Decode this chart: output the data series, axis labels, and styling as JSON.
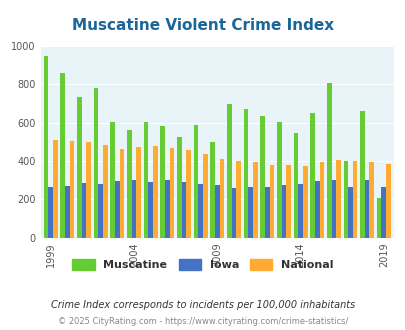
{
  "title": "Muscatine Violent Crime Index",
  "years": [
    1999,
    2000,
    2001,
    2002,
    2003,
    2004,
    2005,
    2006,
    2007,
    2008,
    2009,
    2010,
    2011,
    2012,
    2013,
    2014,
    2015,
    2016,
    2017,
    2018,
    2019
  ],
  "muscatine": [
    950,
    860,
    735,
    780,
    605,
    560,
    605,
    585,
    525,
    590,
    500,
    700,
    670,
    635,
    605,
    545,
    650,
    810,
    400,
    660,
    205
  ],
  "iowa": [
    265,
    270,
    285,
    280,
    295,
    300,
    290,
    300,
    290,
    280,
    275,
    260,
    265,
    265,
    275,
    280,
    295,
    300,
    265,
    300,
    265
  ],
  "national": [
    510,
    505,
    500,
    485,
    465,
    475,
    480,
    470,
    460,
    435,
    410,
    400,
    395,
    380,
    380,
    375,
    395,
    405,
    400,
    395,
    385
  ],
  "muscatine_color": "#66cc33",
  "iowa_color": "#4472c4",
  "national_color": "#ffaa33",
  "bg_color": "#e8f4f8",
  "ylim": [
    0,
    1000
  ],
  "yticks": [
    0,
    200,
    400,
    600,
    800,
    1000
  ],
  "xtick_years": [
    1999,
    2004,
    2009,
    2014,
    2019
  ],
  "footnote": "Crime Index corresponds to incidents per 100,000 inhabitants",
  "copyright": "© 2025 CityRating.com - https://www.cityrating.com/crime-statistics/"
}
